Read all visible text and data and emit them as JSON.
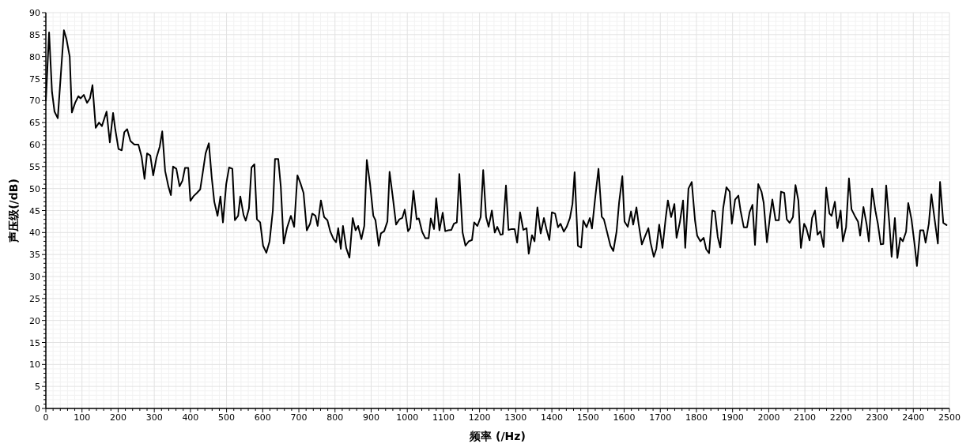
{
  "chart_data": {
    "type": "line",
    "xlabel": "频率 (/Hz)",
    "ylabel": "声压级(/dB)",
    "xlim": [
      0,
      2500
    ],
    "xticks": [
      0,
      100,
      200,
      300,
      400,
      500,
      600,
      700,
      800,
      900,
      1000,
      1100,
      1200,
      1300,
      1400,
      1500,
      1600,
      1700,
      1800,
      1900,
      2000,
      2100,
      2200,
      2300,
      2400,
      2500
    ],
    "ylim": [
      0,
      90
    ],
    "yticks": [
      0,
      5,
      10,
      15,
      20,
      25,
      30,
      35,
      40,
      45,
      50,
      55,
      60,
      65,
      70,
      75,
      80,
      85,
      90
    ],
    "grid": true,
    "line_style": "solid",
    "marker": "none",
    "series": [
      {
        "color": "#000000",
        "x": [
          0,
          9,
          17,
          24,
          33,
          50,
          57,
          66,
          72,
          81,
          90,
          96,
          105,
          114,
          122,
          129,
          138,
          147,
          155,
          168,
          177,
          186,
          192,
          201,
          210,
          217,
          225,
          234,
          245,
          256,
          265,
          273,
          280,
          289,
          297,
          306,
          315,
          322,
          330,
          339,
          346,
          352,
          361,
          370,
          378,
          385,
          394,
          400,
          409,
          418,
          427,
          433,
          442,
          451,
          459,
          466,
          475,
          483,
          490,
          499,
          507,
          516,
          523,
          532,
          538,
          547,
          553,
          562,
          569,
          577,
          584,
          593,
          601,
          610,
          619,
          628,
          634,
          643,
          650,
          658,
          667,
          678,
          687,
          696,
          704,
          713,
          722,
          731,
          737,
          746,
          752,
          761,
          770,
          779,
          787,
          796,
          803,
          809,
          816,
          822,
          831,
          840,
          849,
          857,
          864,
          873,
          881,
          888,
          897,
          906,
          912,
          921,
          927,
          936,
          945,
          951,
          960,
          969,
          978,
          986,
          993,
          1002,
          1008,
          1017,
          1026,
          1032,
          1041,
          1050,
          1059,
          1065,
          1074,
          1080,
          1089,
          1098,
          1105,
          1113,
          1122,
          1129,
          1137,
          1144,
          1153,
          1161,
          1170,
          1179,
          1185,
          1194,
          1203,
          1210,
          1218,
          1225,
          1234,
          1242,
          1249,
          1258,
          1264,
          1273,
          1280,
          1289,
          1297,
          1304,
          1312,
          1321,
          1330,
          1336,
          1345,
          1352,
          1360,
          1369,
          1378,
          1385,
          1393,
          1400,
          1409,
          1417,
          1424,
          1433,
          1441,
          1450,
          1457,
          1463,
          1472,
          1481,
          1487,
          1496,
          1505,
          1511,
          1520,
          1529,
          1538,
          1544,
          1553,
          1562,
          1570,
          1579,
          1586,
          1595,
          1601,
          1610,
          1619,
          1625,
          1634,
          1640,
          1649,
          1658,
          1667,
          1673,
          1682,
          1689,
          1697,
          1706,
          1715,
          1721,
          1730,
          1739,
          1745,
          1754,
          1763,
          1769,
          1778,
          1787,
          1796,
          1802,
          1811,
          1820,
          1827,
          1835,
          1844,
          1851,
          1859,
          1866,
          1874,
          1883,
          1892,
          1898,
          1907,
          1916,
          1922,
          1931,
          1940,
          1947,
          1955,
          1962,
          1971,
          1980,
          1986,
          1995,
          2004,
          2010,
          2019,
          2028,
          2034,
          2043,
          2050,
          2058,
          2067,
          2074,
          2082,
          2089,
          2098,
          2104,
          2113,
          2120,
          2128,
          2135,
          2143,
          2152,
          2159,
          2168,
          2174,
          2183,
          2190,
          2199,
          2205,
          2214,
          2222,
          2229,
          2238,
          2247,
          2253,
          2262,
          2271,
          2277,
          2286,
          2295,
          2302,
          2310,
          2317,
          2325,
          2334,
          2340,
          2349,
          2356,
          2364,
          2371,
          2380,
          2386,
          2395,
          2404,
          2410,
          2419,
          2428,
          2434,
          2443,
          2450,
          2459,
          2468,
          2474,
          2483,
          2492
        ],
        "values": [
          70,
          85.5,
          72,
          67.5,
          66,
          86,
          84,
          80,
          67.3,
          69.5,
          71,
          70.5,
          71.3,
          69.5,
          70.5,
          73.5,
          63.8,
          65,
          64.2,
          67.5,
          60.5,
          67.2,
          63.5,
          59,
          58.7,
          62.8,
          63.5,
          60.8,
          60,
          60,
          57.2,
          52.2,
          58,
          57.5,
          53,
          57,
          59.5,
          63,
          54,
          50.5,
          48.5,
          55,
          54.5,
          50.5,
          51.8,
          54.7,
          54.7,
          47.2,
          48.3,
          49,
          49.8,
          53,
          58,
          60.3,
          52.5,
          47,
          43.8,
          48.2,
          42.3,
          51,
          54.8,
          54.5,
          42.8,
          43.8,
          48.2,
          44,
          42.7,
          45.5,
          54.8,
          55.5,
          43,
          42.3,
          37,
          35.4,
          38,
          45,
          56.7,
          56.7,
          50.5,
          37.5,
          41,
          43.8,
          41.3,
          53,
          51.3,
          49,
          40.5,
          42,
          44.3,
          43.8,
          41.5,
          47.3,
          43.5,
          42.8,
          40.2,
          38.5,
          37.8,
          41,
          36.3,
          41.5,
          36.5,
          34.3,
          43.3,
          40.5,
          41.5,
          38.5,
          41.5,
          56.5,
          51,
          43.8,
          42.8,
          37,
          39.8,
          40.3,
          42.5,
          53.8,
          48,
          41.8,
          43,
          43.3,
          45.2,
          40.3,
          41,
          49.5,
          43,
          43.2,
          40.2,
          38.7,
          38.7,
          43.2,
          40.8,
          47.8,
          40.5,
          44.5,
          40.3,
          40.5,
          40.6,
          42,
          42.3,
          53.3,
          40,
          37,
          38,
          38.3,
          42.3,
          41.5,
          43.5,
          54.2,
          43.5,
          41.3,
          45,
          40,
          41.3,
          39.5,
          39.6,
          50.7,
          40.6,
          40.8,
          40.8,
          37.7,
          44.6,
          40.6,
          41,
          35.2,
          39.4,
          38,
          45.7,
          39.8,
          43.3,
          40.8,
          38.3,
          44.6,
          44.3,
          41.2,
          42,
          40.2,
          41.3,
          43.3,
          46.5,
          53.7,
          37,
          36.6,
          42.7,
          41.2,
          43.3,
          40.9,
          48,
          54.5,
          43.6,
          43,
          40,
          37,
          35.8,
          40.2,
          46.8,
          52.8,
          42.5,
          41.3,
          44.8,
          41.8,
          45.7,
          42,
          37.3,
          39.2,
          41,
          37.7,
          34.5,
          36.3,
          41.8,
          36.5,
          43.3,
          47.3,
          43.5,
          46.5,
          38.8,
          42.3,
          47.3,
          36.5,
          50,
          51.5,
          42.8,
          39.3,
          38,
          38.8,
          36.2,
          35.3,
          45,
          44.8,
          39,
          36.6,
          45.5,
          50.3,
          49.3,
          42,
          47.5,
          48.4,
          45,
          41.2,
          41.2,
          44.6,
          46.3,
          37.2,
          51,
          49.3,
          46.8,
          37.8,
          44,
          47.5,
          42.8,
          42.8,
          49.3,
          49,
          43,
          42.2,
          43.5,
          50.8,
          47.3,
          36.5,
          42,
          41,
          38.2,
          43.3,
          45,
          39.5,
          40.3,
          36.7,
          50.2,
          44.3,
          43.8,
          47,
          41,
          45,
          38,
          41.2,
          52.3,
          45.3,
          43.8,
          42.5,
          39.3,
          45.8,
          41.8,
          38,
          50,
          45,
          42,
          37.3,
          37.4,
          50.7,
          41.8,
          34.5,
          43.3,
          34.2,
          38.8,
          38,
          40.2,
          46.7,
          43,
          37,
          32.4,
          40.5,
          40.5,
          37.7,
          42,
          48.7,
          43,
          37.5,
          51.5,
          42.2,
          41.7
        ]
      }
    ]
  }
}
